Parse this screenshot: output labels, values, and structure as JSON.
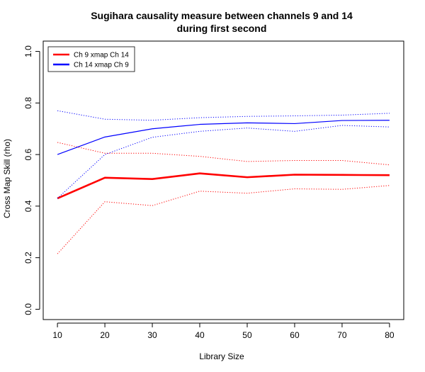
{
  "chart_data": {
    "type": "line",
    "title": [
      "Sugihara causality measure between channels  9 and 14",
      "during first second"
    ],
    "xlabel": "Library Size",
    "ylabel": "Cross Map Skill (rho)",
    "xlim": [
      7,
      83
    ],
    "ylim": [
      -0.04,
      1.04
    ],
    "x_ticks": [
      "10",
      "20",
      "30",
      "40",
      "50",
      "60",
      "70",
      "80"
    ],
    "y_ticks": [
      "0.0",
      "0.2",
      "0.4",
      "0.6",
      "0.8",
      "1.0"
    ],
    "legend_position": "top-left",
    "x": [
      10,
      20,
      30,
      40,
      50,
      60,
      70,
      80
    ],
    "series": [
      {
        "name": "Ch 9 xmap Ch 14",
        "color": "#ff0000",
        "values": [
          0.43,
          0.51,
          0.505,
          0.527,
          0.512,
          0.522,
          0.521,
          0.52
        ],
        "upper": [
          0.647,
          0.605,
          0.605,
          0.593,
          0.573,
          0.577,
          0.577,
          0.56
        ],
        "lower": [
          0.215,
          0.417,
          0.402,
          0.458,
          0.45,
          0.467,
          0.465,
          0.48
        ]
      },
      {
        "name": "Ch 14  xmap Ch 9",
        "color": "#0000ff",
        "values": [
          0.6,
          0.668,
          0.7,
          0.717,
          0.723,
          0.72,
          0.732,
          0.733
        ],
        "upper": [
          0.77,
          0.737,
          0.733,
          0.743,
          0.748,
          0.75,
          0.753,
          0.76
        ],
        "lower": [
          0.43,
          0.6,
          0.667,
          0.69,
          0.703,
          0.69,
          0.713,
          0.707
        ]
      }
    ]
  }
}
